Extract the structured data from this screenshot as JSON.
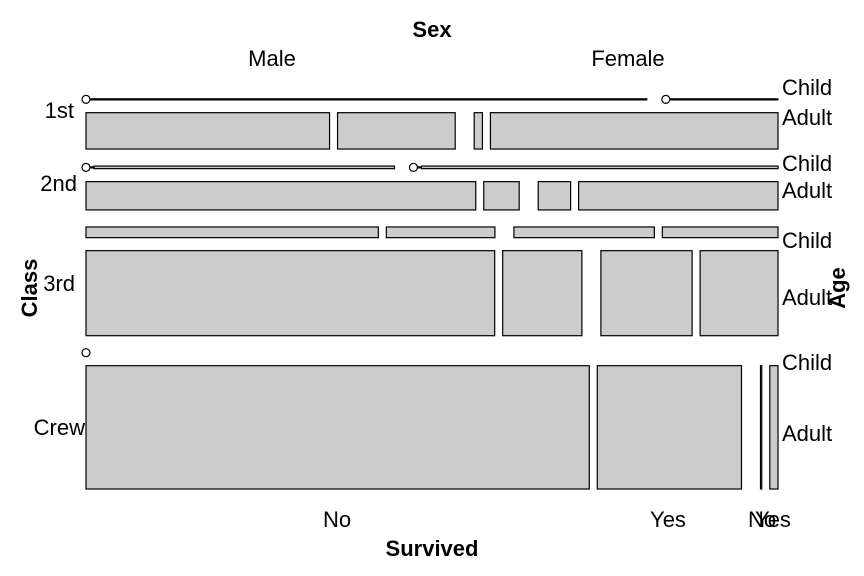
{
  "chart_data": {
    "type": "mosaic",
    "title": "",
    "variables": {
      "top": "Sex",
      "bottom": "Survived",
      "left": "Class",
      "right": "Age"
    },
    "sex_levels": [
      "Male",
      "Female"
    ],
    "survived_levels": [
      "No",
      "Yes"
    ],
    "class_levels": [
      "1st",
      "2nd",
      "3rd",
      "Crew"
    ],
    "age_levels": [
      "Child",
      "Adult"
    ],
    "counts": [
      {
        "class": "1st",
        "age": "Child",
        "male_no": 0,
        "male_yes": 5,
        "female_no": 0,
        "female_yes": 1
      },
      {
        "class": "1st",
        "age": "Adult",
        "male_no": 118,
        "male_yes": 57,
        "female_no": 4,
        "female_yes": 140
      },
      {
        "class": "2nd",
        "age": "Child",
        "male_no": 0,
        "male_yes": 11,
        "female_no": 0,
        "female_yes": 13
      },
      {
        "class": "2nd",
        "age": "Adult",
        "male_no": 154,
        "male_yes": 14,
        "female_no": 13,
        "female_yes": 80
      },
      {
        "class": "3rd",
        "age": "Child",
        "male_no": 35,
        "male_yes": 13,
        "female_no": 17,
        "female_yes": 14
      },
      {
        "class": "3rd",
        "age": "Adult",
        "male_no": 387,
        "male_yes": 75,
        "female_no": 89,
        "female_yes": 76
      },
      {
        "class": "Crew",
        "age": "Child",
        "male_no": 0,
        "male_yes": 0,
        "female_no": 0,
        "female_yes": 0
      },
      {
        "class": "Crew",
        "age": "Adult",
        "male_no": 670,
        "male_yes": 192,
        "female_no": 3,
        "female_yes": 20
      }
    ],
    "tile_fill": "#cccccc"
  }
}
